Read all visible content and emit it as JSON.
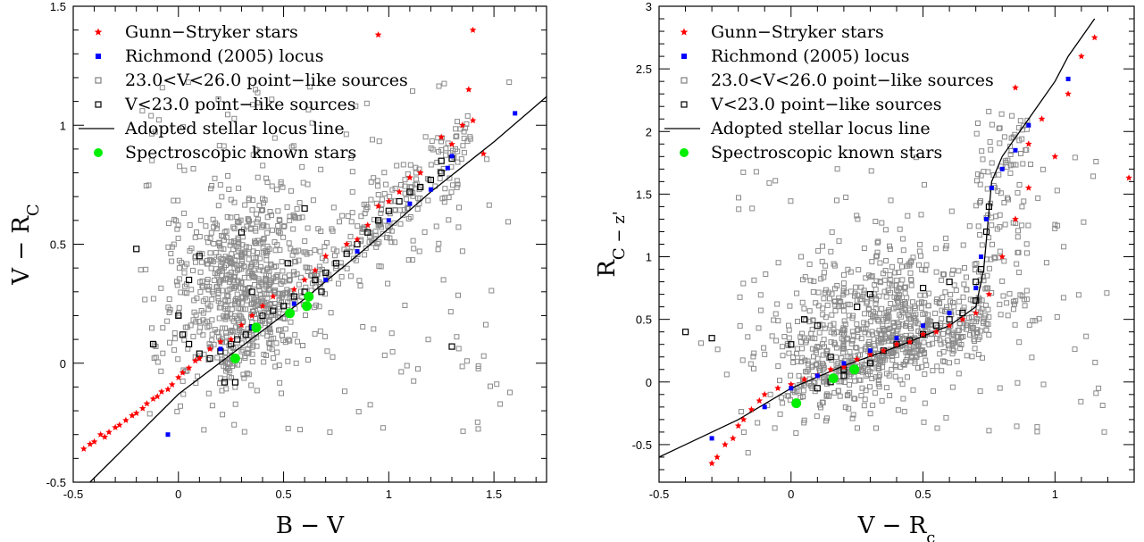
{
  "chart_data": [
    {
      "type": "scatter",
      "panel": "left",
      "xlabel": "B − V",
      "ylabel": "V − R_C",
      "xlim": [
        -0.5,
        1.75
      ],
      "ylim": [
        -0.5,
        1.5
      ],
      "xticks": [
        -0.5,
        0,
        0.5,
        1,
        1.5
      ],
      "xtick_labels": [
        "-0.5",
        "0",
        "0.5",
        "1",
        "1.5"
      ],
      "yticks": [
        -0.5,
        0,
        0.5,
        1,
        1.5
      ],
      "ytick_labels": [
        "-0.5",
        "0",
        "0.5",
        "1",
        "1.5"
      ],
      "grid": false,
      "legend_position": "top-left",
      "legend": [
        {
          "label": "Gunn−Stryker stars",
          "marker": "star",
          "color": "#ff0000"
        },
        {
          "label": "Richmond (2005) locus",
          "marker": "filled-square",
          "color": "#0000ff"
        },
        {
          "label": "23.0<V<26.0 point−like sources",
          "marker": "open-square",
          "color": "#808080"
        },
        {
          "label": "V<23.0 point−like sources",
          "marker": "open-square",
          "color": "#000000"
        },
        {
          "label": "Adopted stellar locus line",
          "marker": "line",
          "color": "#000000"
        },
        {
          "label": "Spectroscopic known stars",
          "marker": "filled-circle",
          "color": "#00ee00"
        }
      ],
      "locus_line": {
        "x": [
          -0.42,
          0.0,
          0.3,
          0.6,
          0.9,
          1.2,
          1.5,
          1.75
        ],
        "y": [
          -0.5,
          -0.13,
          0.07,
          0.27,
          0.49,
          0.72,
          0.93,
          1.12
        ]
      },
      "richmond_locus": {
        "x": [
          -0.05,
          0.2,
          0.35,
          0.55,
          0.7,
          0.85,
          1.0,
          1.1,
          1.2,
          1.28,
          1.3,
          1.6
        ],
        "y": [
          -0.3,
          0.06,
          0.15,
          0.25,
          0.35,
          0.47,
          0.6,
          0.67,
          0.73,
          0.82,
          0.87,
          1.05
        ]
      },
      "gunn_stryker": {
        "x": [
          -0.45,
          -0.42,
          -0.4,
          -0.37,
          -0.35,
          -0.33,
          -0.3,
          -0.28,
          -0.25,
          -0.22,
          -0.2,
          -0.17,
          -0.15,
          -0.12,
          -0.1,
          -0.08,
          -0.05,
          -0.03,
          0.0,
          0.02,
          0.05,
          0.08,
          0.1,
          0.15,
          0.2,
          0.25,
          0.3,
          0.35,
          0.4,
          0.45,
          0.55,
          0.6,
          0.65,
          0.7,
          0.8,
          0.85,
          0.9,
          0.95,
          1.0,
          1.05,
          1.1,
          1.15,
          1.25,
          1.3,
          1.35,
          1.4,
          1.45,
          0.95,
          1.4,
          1.38
        ],
        "y": [
          -0.36,
          -0.34,
          -0.33,
          -0.3,
          -0.31,
          -0.29,
          -0.27,
          -0.26,
          -0.24,
          -0.22,
          -0.21,
          -0.19,
          -0.17,
          -0.15,
          -0.14,
          -0.12,
          -0.11,
          -0.09,
          -0.06,
          -0.04,
          -0.02,
          0.01,
          0.02,
          0.06,
          0.09,
          0.1,
          0.16,
          0.2,
          0.24,
          0.28,
          0.31,
          0.35,
          0.39,
          0.45,
          0.5,
          0.52,
          0.58,
          0.66,
          0.68,
          0.72,
          0.78,
          0.8,
          0.95,
          0.92,
          1.0,
          1.02,
          0.88,
          1.38,
          1.4,
          1.15
        ]
      },
      "bright_sources": {
        "x": [
          0.05,
          0.1,
          0.15,
          0.2,
          0.25,
          0.28,
          0.32,
          0.35,
          0.4,
          0.45,
          0.5,
          0.55,
          0.6,
          0.65,
          0.7,
          0.75,
          0.8,
          0.85,
          0.9,
          0.95,
          1.0,
          1.05,
          1.1,
          1.15,
          1.2,
          1.25,
          1.3,
          0.0,
          0.05,
          0.1,
          0.3,
          0.35,
          -0.2,
          -0.12,
          0.02,
          0.22,
          0.27,
          0.52,
          0.68,
          1.3,
          1.25,
          0.6
        ],
        "y": [
          0.08,
          0.04,
          0.02,
          0.05,
          0.08,
          0.1,
          0.12,
          0.15,
          0.2,
          0.22,
          0.24,
          0.28,
          0.3,
          0.35,
          0.38,
          0.42,
          0.46,
          0.5,
          0.55,
          0.6,
          0.64,
          0.68,
          0.72,
          0.74,
          0.77,
          0.8,
          0.86,
          0.2,
          0.35,
          0.45,
          0.55,
          0.3,
          0.48,
          0.08,
          0.12,
          -0.08,
          -0.08,
          0.42,
          0.3,
          0.07,
          0.85,
          0.65
        ]
      },
      "spectroscopic": {
        "x": [
          0.27,
          0.37,
          0.53,
          0.61,
          0.62
        ],
        "y": [
          0.02,
          0.15,
          0.21,
          0.24,
          0.28
        ]
      },
      "faint_cloud": {
        "n": 1100,
        "center_x": 0.3,
        "center_y": 0.35,
        "spread_x": 0.3,
        "spread_y": 0.28
      }
    },
    {
      "type": "scatter",
      "panel": "right",
      "xlabel": "V − R_c",
      "ylabel": "R_C − z'",
      "xlim": [
        -0.5,
        1.3
      ],
      "ylim": [
        -0.8,
        3.0
      ],
      "xticks": [
        -0.5,
        0,
        0.5,
        1
      ],
      "xtick_labels": [
        "-0.5",
        "0",
        "0.5",
        "1"
      ],
      "yticks": [
        -0.5,
        0,
        0.5,
        1,
        1.5,
        2,
        2.5,
        3
      ],
      "ytick_labels": [
        "-0.5",
        "0",
        "0.5",
        "1",
        "1.5",
        "2",
        "2.5",
        "3"
      ],
      "grid": false,
      "legend_position": "top-left",
      "legend": [
        {
          "label": "Gunn−Stryker stars",
          "marker": "star",
          "color": "#ff0000"
        },
        {
          "label": "Richmond (2005) locus",
          "marker": "filled-square",
          "color": "#0000ff"
        },
        {
          "label": "23.0<V<26.0 point−like sources",
          "marker": "open-square",
          "color": "#808080"
        },
        {
          "label": "V<23.0 point−like sources",
          "marker": "open-square",
          "color": "#000000"
        },
        {
          "label": "Adopted stellar locus line",
          "marker": "line",
          "color": "#000000"
        },
        {
          "label": "Spectroscopic known stars",
          "marker": "filled-circle",
          "color": "#00ee00"
        }
      ],
      "locus_line": {
        "x": [
          -0.5,
          -0.2,
          0.0,
          0.2,
          0.4,
          0.6,
          0.7,
          0.73,
          0.76,
          0.8,
          0.9,
          1.0,
          1.05,
          1.15
        ],
        "y": [
          -0.6,
          -0.3,
          -0.05,
          0.13,
          0.28,
          0.45,
          0.6,
          0.9,
          1.6,
          1.8,
          2.1,
          2.4,
          2.6,
          2.9
        ]
      },
      "richmond_locus": {
        "x": [
          -0.3,
          -0.1,
          0.0,
          0.1,
          0.2,
          0.3,
          0.4,
          0.5,
          0.6,
          0.7,
          0.72,
          0.74,
          0.76,
          0.8,
          0.85,
          0.9,
          1.05
        ],
        "y": [
          -0.45,
          -0.2,
          -0.05,
          0.05,
          0.15,
          0.25,
          0.35,
          0.45,
          0.55,
          0.75,
          1.0,
          1.3,
          1.55,
          1.7,
          1.85,
          2.05,
          2.42
        ]
      },
      "gunn_stryker": {
        "x": [
          -0.3,
          -0.28,
          -0.25,
          -0.22,
          -0.2,
          -0.18,
          -0.15,
          -0.12,
          -0.1,
          -0.05,
          0.0,
          0.05,
          0.1,
          0.15,
          0.2,
          0.25,
          0.3,
          0.35,
          0.4,
          0.45,
          0.5,
          0.55,
          0.6,
          0.65,
          0.7,
          0.75,
          0.8,
          0.85,
          0.9,
          0.95,
          1.0,
          1.05,
          1.1,
          1.15,
          1.28,
          0.9,
          0.85
        ],
        "y": [
          -0.65,
          -0.6,
          -0.5,
          -0.45,
          -0.35,
          -0.3,
          -0.22,
          -0.15,
          -0.1,
          -0.05,
          -0.02,
          0.02,
          0.05,
          0.1,
          0.12,
          0.18,
          0.22,
          0.25,
          0.3,
          0.32,
          0.38,
          0.4,
          0.45,
          0.5,
          0.55,
          0.7,
          1.0,
          1.3,
          1.9,
          2.1,
          1.8,
          2.3,
          2.6,
          2.75,
          1.63,
          1.55,
          2.35
        ]
      },
      "bright_sources": {
        "x": [
          -0.4,
          -0.3,
          0.0,
          0.05,
          0.1,
          0.15,
          0.2,
          0.3,
          0.35,
          0.4,
          0.45,
          0.5,
          0.55,
          0.6,
          0.65,
          0.7,
          0.72,
          0.74,
          0.75,
          0.1,
          0.15,
          0.2,
          0.25,
          0.3,
          0.5,
          0.6,
          0.7
        ],
        "y": [
          0.4,
          0.35,
          0.3,
          0.5,
          0.45,
          0.2,
          0.1,
          0.15,
          0.25,
          0.3,
          0.33,
          0.38,
          0.45,
          0.5,
          0.55,
          0.65,
          0.9,
          1.2,
          1.4,
          -0.05,
          0.0,
          0.05,
          0.6,
          0.7,
          0.75,
          0.8,
          0.8
        ]
      },
      "spectroscopic": {
        "x": [
          0.02,
          0.16,
          0.24
        ],
        "y": [
          -0.17,
          0.03,
          0.1
        ]
      },
      "faint_cloud": {
        "n": 1100,
        "center_x": 0.3,
        "center_y": 0.45,
        "spread_x": 0.3,
        "spread_y": 0.35
      }
    }
  ]
}
